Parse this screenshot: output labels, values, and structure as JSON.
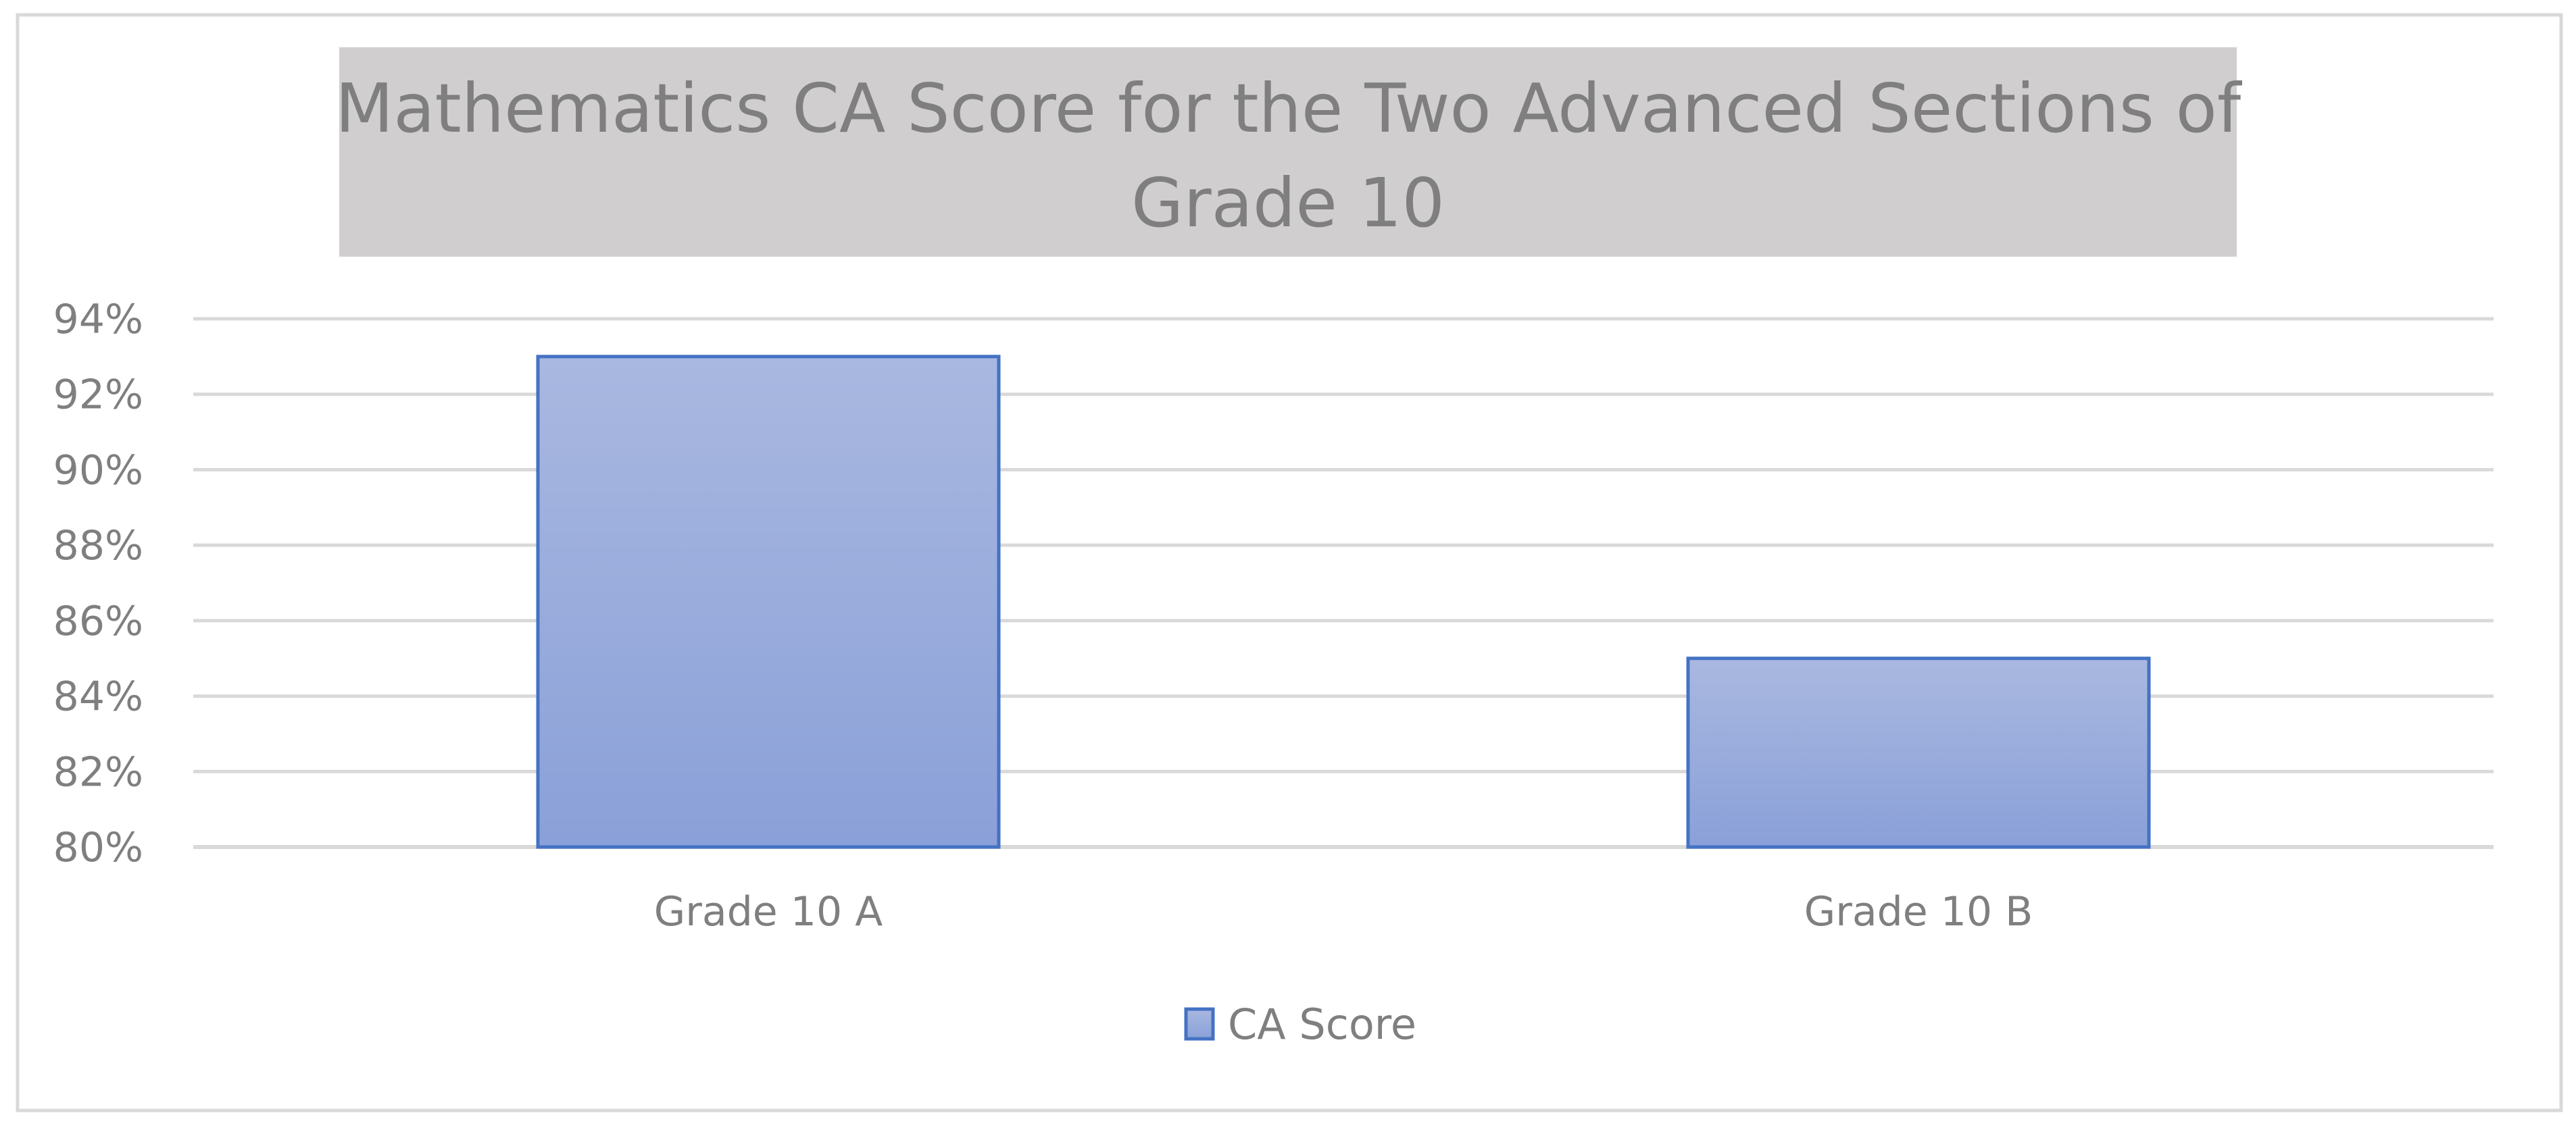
{
  "chart_data": {
    "type": "bar",
    "title_lines": [
      "Mathematics CA Score for the Two Advanced Sections of",
      "Grade 10"
    ],
    "categories": [
      "Grade 10 A",
      "Grade 10 B"
    ],
    "series": [
      {
        "name": "CA Score",
        "values": [
          93,
          85
        ]
      }
    ],
    "ylim": [
      80,
      94
    ],
    "ytick_step": 2,
    "ytick_suffix": "%",
    "grid": true,
    "legend_position": "bottom",
    "colors": {
      "bar_fill_top": "#a9b8e0",
      "bar_fill_bottom": "#8aa0d8",
      "bar_stroke": "#4472c4",
      "grid": "#d9d9d9",
      "title_box": "#d0cece",
      "text": "#7f7f7f",
      "frame": "#d9d9d9"
    }
  }
}
